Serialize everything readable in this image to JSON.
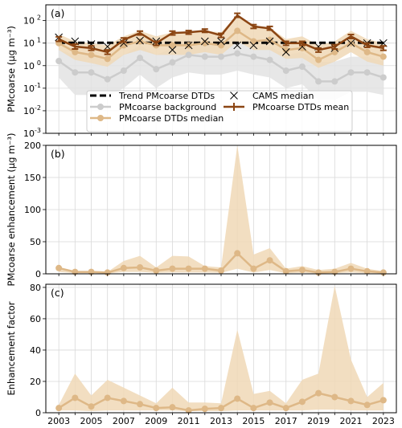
{
  "chart_data": [
    {
      "type": "line",
      "panel_label": "(a)",
      "ylabel": "PMcoarse (µg m⁻³)",
      "yscale": "log",
      "ylim": [
        0.001,
        500
      ],
      "y_ticks": [
        {
          "value": 0.001,
          "label": "10",
          "exp": "-3"
        },
        {
          "value": 0.01,
          "label": "10",
          "exp": "-2"
        },
        {
          "value": 0.1,
          "label": "10",
          "exp": "-1"
        },
        {
          "value": 1,
          "label": "10",
          "exp": "0"
        },
        {
          "value": 10,
          "label": "10",
          "exp": "1"
        },
        {
          "value": 100,
          "label": "10",
          "exp": "2"
        }
      ],
      "x": [
        2003,
        2004,
        2005,
        2006,
        2007,
        2008,
        2009,
        2010,
        2011,
        2012,
        2013,
        2014,
        2015,
        2016,
        2017,
        2018,
        2019,
        2020,
        2021,
        2022,
        2023
      ],
      "grid": true,
      "legend_position": "lower-center",
      "series": [
        {
          "name": "Trend PMcoarse DTDs",
          "style": "dashed",
          "color": "#000000",
          "values": [
            10.3,
            10.3,
            10.3,
            10.3,
            10.3,
            10.3,
            10.3,
            10.3,
            10.3,
            10.3,
            10.3,
            10.3,
            10.3,
            10.3,
            10.3,
            10.3,
            10.3,
            10.3,
            10.3,
            10.3,
            10.3
          ]
        },
        {
          "name": "PMcoarse background",
          "style": "line-marker",
          "color": "#cccccc",
          "band_color": "#e3e3e3",
          "values": [
            1.6,
            0.5,
            0.5,
            0.25,
            0.6,
            2.2,
            0.7,
            1.4,
            3.0,
            2.5,
            2.5,
            3.5,
            2.5,
            1.8,
            0.6,
            0.9,
            0.2,
            0.2,
            0.5,
            0.5,
            0.3
          ],
          "lower": [
            0.3,
            0.05,
            0.05,
            0.04,
            0.1,
            0.4,
            0.1,
            0.3,
            0.5,
            0.4,
            0.4,
            0.6,
            0.4,
            0.3,
            0.1,
            0.15,
            0.03,
            0.03,
            0.07,
            0.07,
            0.05
          ],
          "upper": [
            5,
            3,
            3,
            1.5,
            3,
            8,
            3,
            6,
            9,
            8,
            8,
            10,
            8,
            7,
            3,
            4,
            1.5,
            1.5,
            2.5,
            2.5,
            1.5
          ]
        },
        {
          "name": "PMcoarse DTDs median",
          "style": "line-marker",
          "color": "#deb887",
          "band_color": "#f0d8b6",
          "values": [
            10,
            4,
            3,
            2,
            8,
            12,
            8,
            8,
            8,
            10,
            8,
            35,
            12,
            14,
            5,
            6,
            1.8,
            4,
            10,
            4,
            2.5
          ],
          "lower": [
            5,
            1.8,
            1.3,
            0.9,
            3,
            5,
            3,
            3,
            3,
            4,
            3,
            12,
            5,
            5,
            2,
            2.2,
            0.8,
            1.5,
            4,
            1.5,
            1.0
          ],
          "upper": [
            25,
            12,
            10,
            8,
            20,
            35,
            20,
            30,
            30,
            35,
            30,
            180,
            60,
            50,
            15,
            20,
            8,
            12,
            35,
            15,
            10
          ]
        },
        {
          "name": "CAMS median",
          "style": "x-markers",
          "color": "#000000",
          "values": [
            18,
            12,
            9,
            7,
            10,
            13,
            12,
            5,
            8,
            12,
            12,
            8,
            8,
            12,
            4,
            7,
            7,
            6,
            10,
            10,
            10
          ]
        },
        {
          "name": "PMcoarse DTDs mean",
          "style": "line-errorbar",
          "color": "#8b4513",
          "values": [
            15,
            7,
            6,
            4,
            14,
            28,
            10,
            28,
            30,
            35,
            22,
            170,
            55,
            45,
            10,
            10,
            5,
            7,
            20,
            8,
            6
          ],
          "err_low": [
            12,
            5.5,
            4.8,
            3.2,
            11,
            23,
            8,
            23,
            25,
            30,
            18,
            140,
            45,
            38,
            8,
            8,
            4,
            5.5,
            16,
            6.5,
            4.8
          ],
          "err_high": [
            19,
            9,
            7.5,
            5,
            17,
            34,
            12,
            34,
            36,
            42,
            27,
            210,
            66,
            55,
            12,
            12,
            6,
            8.5,
            24,
            10,
            7.5
          ]
        }
      ]
    },
    {
      "type": "line",
      "panel_label": "(b)",
      "ylabel": "PMcoarse enhancement (µg m⁻³)",
      "ylim": [
        0,
        200
      ],
      "y_ticks": [
        0,
        50,
        100,
        150,
        200
      ],
      "x": [
        2003,
        2004,
        2005,
        2006,
        2007,
        2008,
        2009,
        2010,
        2011,
        2012,
        2013,
        2014,
        2015,
        2016,
        2017,
        2018,
        2019,
        2020,
        2021,
        2022,
        2023
      ],
      "grid": true,
      "series": [
        {
          "name": "PMcoarse enhancement",
          "color": "#deb887",
          "band_color": "#f0d8b6",
          "values": [
            9,
            3,
            3,
            2,
            9,
            10,
            5,
            8,
            8,
            8,
            5,
            32,
            8,
            21,
            4,
            6,
            2,
            3,
            8,
            4,
            2
          ],
          "lower": [
            3,
            1,
            1,
            0.5,
            3,
            3,
            1.5,
            2,
            2,
            2,
            1.5,
            8,
            2,
            6,
            1,
            1.5,
            0.5,
            1,
            2,
            1,
            0.5
          ],
          "upper": [
            10,
            4,
            4,
            3,
            20,
            28,
            10,
            28,
            27,
            12,
            10,
            202,
            30,
            40,
            8,
            12,
            6,
            8,
            17,
            8,
            4
          ]
        }
      ]
    },
    {
      "type": "line",
      "panel_label": "(c)",
      "ylabel": "Enhancement factor",
      "ylim": [
        0,
        82
      ],
      "y_ticks": [
        0,
        20,
        40,
        60,
        80
      ],
      "x": [
        2003,
        2004,
        2005,
        2006,
        2007,
        2008,
        2009,
        2010,
        2011,
        2012,
        2013,
        2014,
        2015,
        2016,
        2017,
        2018,
        2019,
        2020,
        2021,
        2022,
        2023
      ],
      "x_ticks": [
        2003,
        2005,
        2007,
        2009,
        2011,
        2013,
        2015,
        2017,
        2019,
        2021,
        2023
      ],
      "grid": true,
      "series": [
        {
          "name": "Enhancement factor",
          "color": "#deb887",
          "band_color": "#f0d8b6",
          "values": [
            3,
            9.5,
            4,
            9.5,
            7.5,
            5.5,
            3,
            3.5,
            1.5,
            2.5,
            3,
            9,
            3,
            6.5,
            3,
            7,
            12.5,
            10,
            7.5,
            5,
            8
          ],
          "lower": [
            1.5,
            1.5,
            1,
            1.5,
            1.5,
            1.5,
            1.5,
            1.5,
            1,
            1,
            1,
            1.5,
            1.5,
            1.5,
            1.5,
            1.5,
            2,
            2,
            1.5,
            1.5,
            1.5
          ],
          "upper": [
            5,
            25,
            11,
            21,
            16,
            11,
            6,
            16,
            6.5,
            6.5,
            6,
            53,
            12,
            14,
            6,
            21,
            25,
            81,
            34,
            10,
            19
          ]
        }
      ]
    }
  ]
}
